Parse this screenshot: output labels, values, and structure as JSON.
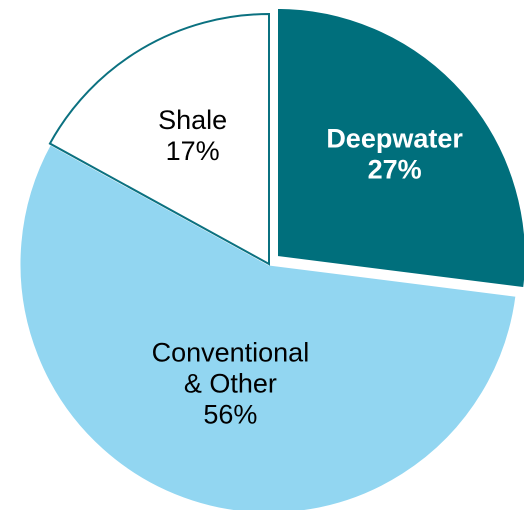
{
  "chart_data": {
    "type": "pie",
    "slices": [
      {
        "name": "Deepwater",
        "value": 27,
        "value_label": "27%",
        "fill": "#006F7C",
        "stroke": "#ffffff",
        "text_color": "#ffffff",
        "bold": true,
        "exploded": true
      },
      {
        "name": "Conventional & Other",
        "name_lines": [
          "Conventional",
          "& Other"
        ],
        "value": 56,
        "value_label": "56%",
        "fill": "#92D6F1",
        "stroke": "#ffffff",
        "text_color": "#000000",
        "bold": false,
        "exploded": false
      },
      {
        "name": "Shale",
        "value": 17,
        "value_label": "17%",
        "fill": "#ffffff",
        "stroke": "#0B7180",
        "text_color": "#000000",
        "bold": false,
        "exploded": false
      }
    ],
    "start_angle_deg": 0,
    "direction": "clockwise",
    "title": "",
    "legend": "none"
  }
}
